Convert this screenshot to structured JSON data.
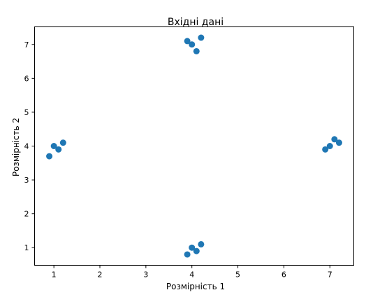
{
  "chart_data": {
    "type": "scatter",
    "title": "Вхідні дані",
    "xlabel": "Розмірність 1",
    "ylabel": "Розмірність 2",
    "xlim": [
      0.58,
      7.52
    ],
    "ylim": [
      0.48,
      7.52
    ],
    "x_ticks": [
      1,
      2,
      3,
      4,
      5,
      6,
      7
    ],
    "y_ticks": [
      1,
      2,
      3,
      4,
      5,
      6,
      7
    ],
    "grid": false,
    "marker_color": "#1f77b4",
    "series": [
      {
        "points": [
          {
            "x": 0.9,
            "y": 3.7
          },
          {
            "x": 1.0,
            "y": 4.0
          },
          {
            "x": 1.1,
            "y": 3.9
          },
          {
            "x": 1.2,
            "y": 4.1
          },
          {
            "x": 3.9,
            "y": 7.1
          },
          {
            "x": 4.0,
            "y": 7.0
          },
          {
            "x": 4.1,
            "y": 6.8
          },
          {
            "x": 4.2,
            "y": 7.2
          },
          {
            "x": 7.0,
            "y": 4.0
          },
          {
            "x": 6.9,
            "y": 3.9
          },
          {
            "x": 7.1,
            "y": 4.2
          },
          {
            "x": 7.2,
            "y": 4.1
          },
          {
            "x": 4.0,
            "y": 1.0
          },
          {
            "x": 4.1,
            "y": 0.9
          },
          {
            "x": 4.2,
            "y": 1.1
          },
          {
            "x": 3.9,
            "y": 0.8
          }
        ]
      }
    ]
  }
}
